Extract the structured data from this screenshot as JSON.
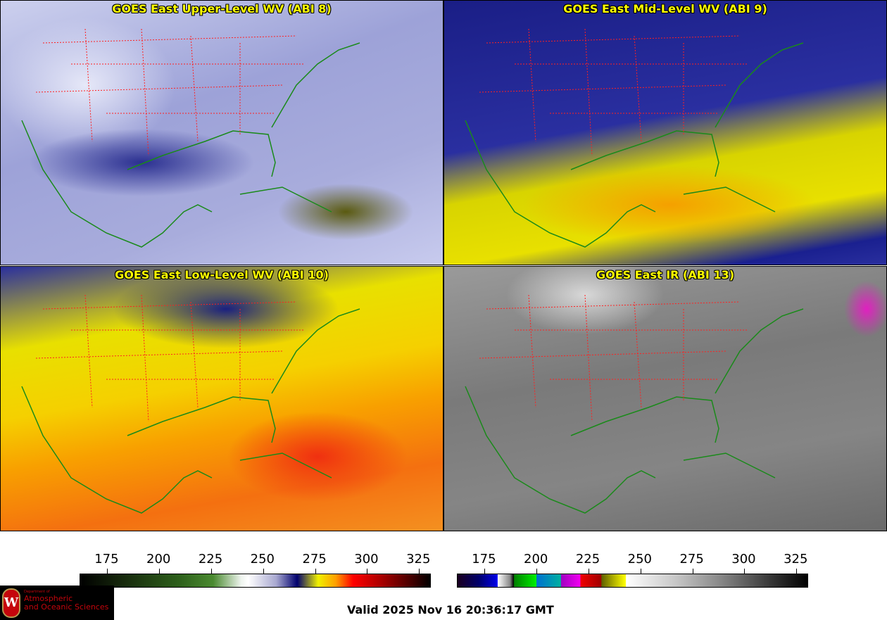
{
  "panels": [
    {
      "title": "GOES East Upper-Level WV (ABI 8)"
    },
    {
      "title": "GOES East Mid-Level WV (ABI 9)"
    },
    {
      "title": "GOES East Low-Level WV (ABI 10)"
    },
    {
      "title": "GOES East IR (ABI 13)"
    }
  ],
  "colorbars": [
    {
      "name": "water-vapor",
      "units": "K",
      "range": [
        162,
        331
      ],
      "ticks": [
        "175",
        "200",
        "225",
        "250",
        "275",
        "300",
        "325"
      ]
    },
    {
      "name": "infrared",
      "units": "K",
      "range": [
        162,
        331
      ],
      "ticks": [
        "175",
        "200",
        "225",
        "250",
        "275",
        "300",
        "325"
      ]
    }
  ],
  "valid_time": "Valid 2025 Nov 16 20:36:17 GMT",
  "logo": {
    "line1": "Department of",
    "line2": "Atmospheric",
    "line3": "and Oceanic Sciences",
    "seal": "W"
  },
  "colors": {
    "title": "#ffff00",
    "borders": "#ff0000",
    "coast": "#008000"
  }
}
